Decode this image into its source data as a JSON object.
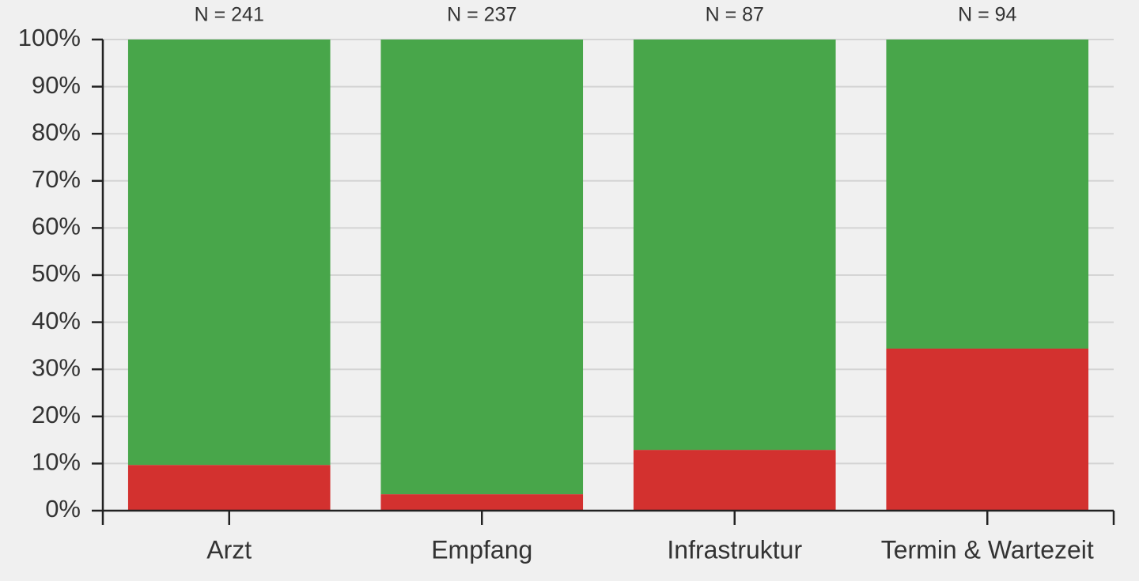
{
  "chart_data": {
    "type": "stacked_bar",
    "categories": [
      "Arzt",
      "Empfang",
      "Infrastruktur",
      "Termin & Wartezeit"
    ],
    "annotations": [
      "N = 241",
      "N = 237",
      "N = 87",
      "N = 94"
    ],
    "series": [
      {
        "color": "#d3312f",
        "values": [
          9.7,
          3.5,
          12.9,
          34.4
        ]
      },
      {
        "color": "#48a64a",
        "values": [
          90.3,
          96.5,
          87.1,
          65.6
        ]
      }
    ],
    "ylim": [
      0,
      100
    ],
    "yticks": [
      {
        "value": 0,
        "label": "0%"
      },
      {
        "value": 10,
        "label": "10%"
      },
      {
        "value": 20,
        "label": "20%"
      },
      {
        "value": 30,
        "label": "30%"
      },
      {
        "value": 40,
        "label": "40%"
      },
      {
        "value": 50,
        "label": "50%"
      },
      {
        "value": 60,
        "label": "60%"
      },
      {
        "value": 70,
        "label": "70%"
      },
      {
        "value": 80,
        "label": "80%"
      },
      {
        "value": 90,
        "label": "90%"
      },
      {
        "value": 100,
        "label": "100%"
      }
    ],
    "grid": true
  }
}
